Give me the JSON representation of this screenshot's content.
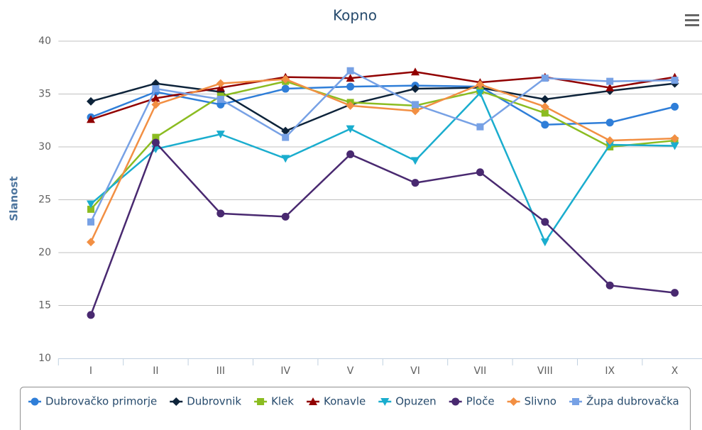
{
  "chart_data": {
    "type": "line",
    "title": "Kopno",
    "y_label": "Slanost",
    "categories": [
      "I",
      "II",
      "III",
      "IV",
      "V",
      "VI",
      "VII",
      "VIII",
      "IX",
      "X"
    ],
    "ylim": [
      10,
      40
    ],
    "yticks": [
      10,
      15,
      20,
      25,
      30,
      35,
      40
    ],
    "grid": true,
    "legend": "bottom",
    "series": [
      {
        "name": "Dubrovačko primorje",
        "color": "#2f7ed8",
        "marker": "circle",
        "values": [
          32.8,
          35.2,
          34.0,
          35.5,
          35.7,
          35.8,
          35.7,
          32.1,
          32.3,
          33.8
        ]
      },
      {
        "name": "Dubrovnik",
        "color": "#0d233a",
        "marker": "diamond",
        "values": [
          34.3,
          36.0,
          35.2,
          31.5,
          34.0,
          35.5,
          35.6,
          34.5,
          35.3,
          36.0
        ]
      },
      {
        "name": "Klek",
        "color": "#8bbc21",
        "marker": "square",
        "values": [
          24.1,
          30.9,
          34.8,
          36.2,
          34.2,
          33.9,
          35.3,
          33.2,
          30.0,
          30.6
        ]
      },
      {
        "name": "Konavle",
        "color": "#910000",
        "marker": "triangle",
        "values": [
          32.6,
          34.6,
          35.6,
          36.6,
          36.5,
          37.1,
          36.1,
          36.6,
          35.6,
          36.6
        ]
      },
      {
        "name": "Opuzen",
        "color": "#1aadce",
        "marker": "triangle-down",
        "values": [
          24.6,
          29.8,
          31.2,
          28.9,
          31.7,
          28.7,
          35.1,
          21.0,
          30.2,
          30.1
        ]
      },
      {
        "name": "Ploče",
        "color": "#492970",
        "marker": "circle",
        "values": [
          14.1,
          30.4,
          23.7,
          23.4,
          29.3,
          26.6,
          27.6,
          22.9,
          16.9,
          16.2
        ]
      },
      {
        "name": "Slivno",
        "color": "#f28f43",
        "marker": "diamond",
        "values": [
          21.0,
          34.0,
          36.0,
          36.4,
          33.9,
          33.4,
          35.9,
          33.8,
          30.6,
          30.8
        ]
      },
      {
        "name": "Župa dubrovačka",
        "color": "#77a1e5",
        "marker": "square",
        "values": [
          22.9,
          35.5,
          34.5,
          30.9,
          37.2,
          34.0,
          31.9,
          36.5,
          36.2,
          36.3
        ]
      }
    ]
  }
}
